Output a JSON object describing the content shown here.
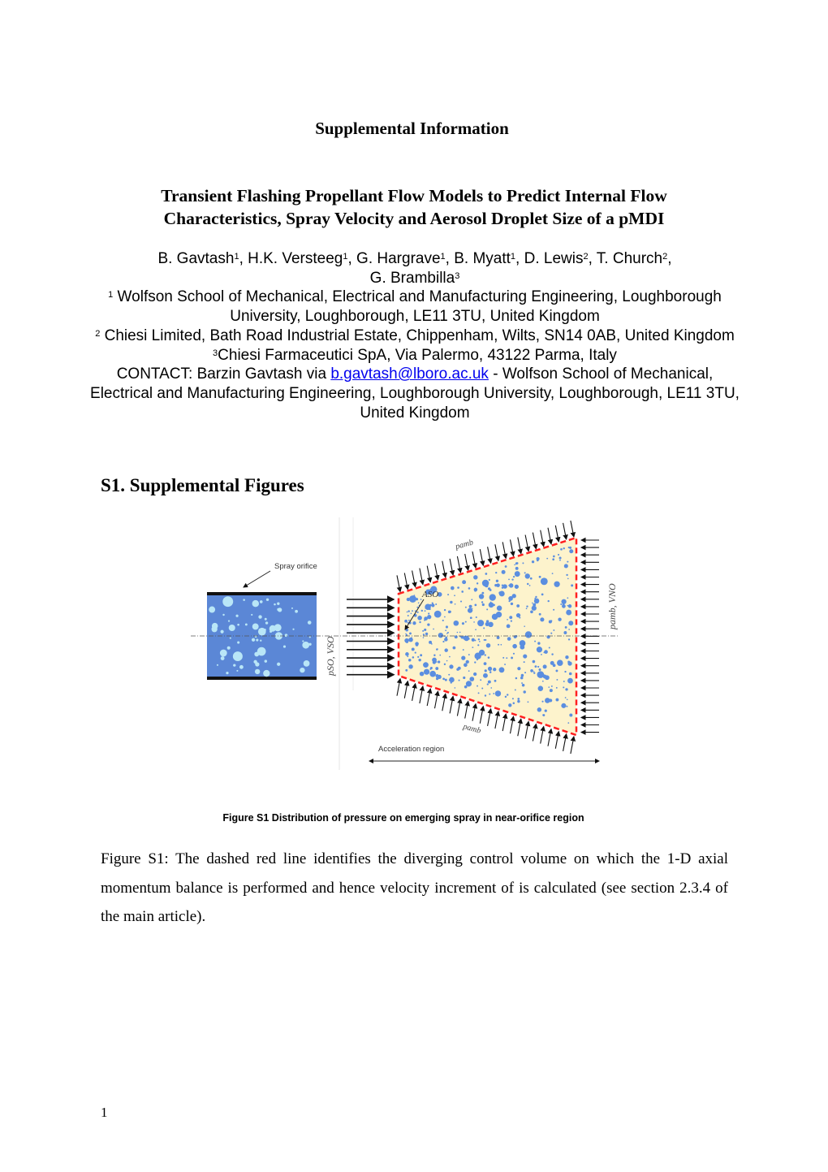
{
  "header": {
    "supplemental_title": "Supplemental Information"
  },
  "paper": {
    "title_line1": "Transient Flashing Propellant Flow Models to Predict Internal Flow",
    "title_line2": "Characteristics, Spray Velocity and Aerosol Droplet Size of a pMDI"
  },
  "authors": {
    "a1": "B. Gavtash",
    "a1_sup": "1",
    "a2": ", H.K. Versteeg",
    "a2_sup": "1",
    "a3": ", G. Hargrave",
    "a3_sup": "1",
    "a4": ", B. Myatt",
    "a4_sup": "1",
    "a5": ", D. Lewis",
    "a5_sup": "2",
    "a6": ", T. Church",
    "a6_sup": "2",
    "a6_tail": ",",
    "a7": "G. Brambilla",
    "a7_sup": "3"
  },
  "affiliations": [
    {
      "sup": "1",
      "text": " Wolfson School of Mechanical, Electrical and Manufacturing Engineering, Loughborough University, Loughborough, LE11 3TU, United Kingdom"
    },
    {
      "sup": "2",
      "text": " Chiesi Limited, Bath Road Industrial Estate, Chippenham, Wilts, SN14 0AB, United Kingdom"
    },
    {
      "sup": "3",
      "text": "Chiesi Farmaceutici SpA, Via Palermo, 43122 Parma, Italy"
    }
  ],
  "contact": {
    "prefix": "CONTACT: Barzin Gavtash via ",
    "email": "b.gavtash@lboro.ac.uk",
    "suffix": " - Wolfson School of Mechanical, Electrical and Manufacturing Engineering, Loughborough University, Loughborough, LE11 3TU, United Kingdom"
  },
  "section": {
    "heading": "S1. Supplemental Figures"
  },
  "figure": {
    "labels": {
      "spray_orifice": "Spray orifice",
      "p_so_v_so": "pSO, VSO",
      "p_amb_top": "pamb",
      "p_amb_bottom": "pamb",
      "a_so": "ASO",
      "p_amb_v_no": "pamb, VNO",
      "acceleration_region": "Acceleration region"
    },
    "colors": {
      "liquid": "#5b87d6",
      "bubbles": "#b9e6f7",
      "control_volume_fill": "#fdf3cc",
      "dashed_line": "#ff2020",
      "droplets": "#5b8ee0"
    },
    "caption": "Figure S1 Distribution of pressure on emerging spray in near-orifice region"
  },
  "body": {
    "paragraph": "Figure S1: The dashed red line identifies the diverging control volume on which the 1-D axial momentum balance is performed and hence velocity increment of  is calculated (see section 2.3.4 of the main article)."
  },
  "footer": {
    "page_number": "1"
  }
}
